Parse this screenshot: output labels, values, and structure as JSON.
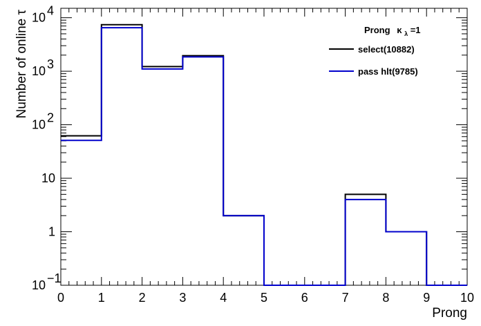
{
  "chart_data": {
    "type": "histogram",
    "title": "",
    "xlabel": "Prong",
    "ylabel": "Number of online τ",
    "xlim": [
      0,
      10
    ],
    "ylim": [
      0.1,
      15000
    ],
    "yscale": "log",
    "bin_edges": [
      0,
      1,
      2,
      3,
      4,
      5,
      6,
      7,
      8,
      9,
      10
    ],
    "x_ticks": [
      "0",
      "1",
      "2",
      "3",
      "4",
      "5",
      "6",
      "7",
      "8",
      "9",
      "10"
    ],
    "y_ticks": [
      {
        "value": 0.1,
        "base": "10",
        "exp": "−1"
      },
      {
        "value": 1,
        "base": "1",
        "exp": ""
      },
      {
        "value": 10,
        "base": "10",
        "exp": ""
      },
      {
        "value": 100,
        "base": "10",
        "exp": "2"
      },
      {
        "value": 1000,
        "base": "10",
        "exp": "3"
      },
      {
        "value": 10000,
        "base": "10",
        "exp": "4"
      }
    ],
    "legend": {
      "placement": "top-right",
      "header": "Prong",
      "header_kappa": "κ",
      "header_sub": "λ",
      "header_rest": "=1"
    },
    "series": [
      {
        "name": "select(10882)",
        "color": "#000000",
        "values": [
          62,
          7400,
          1220,
          1950,
          2,
          0.1,
          0.1,
          5,
          1,
          0.1
        ]
      },
      {
        "name": "pass hlt(9785)",
        "color": "#0000cc",
        "values": [
          51,
          6500,
          1100,
          1850,
          2,
          0.1,
          0.1,
          4,
          1,
          0.1
        ]
      }
    ]
  }
}
